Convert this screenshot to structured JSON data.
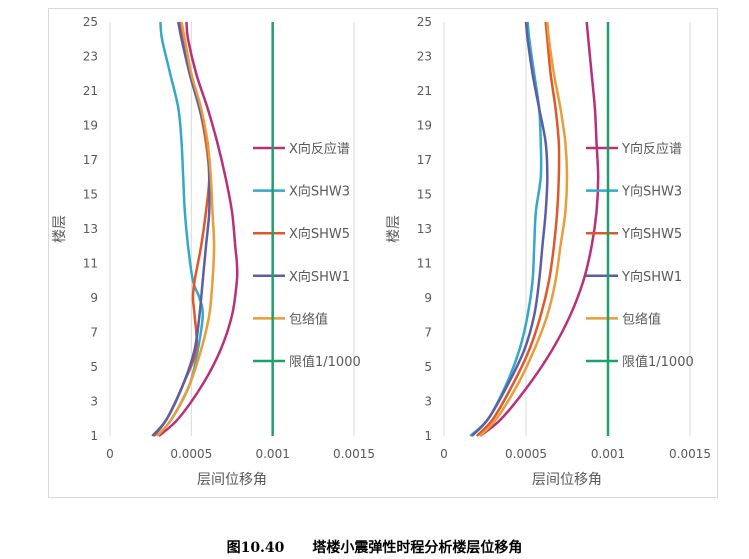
{
  "caption": {
    "number": "图10.40",
    "text": "塔楼小震弹性时程分析楼层位移角"
  },
  "colors": {
    "反应谱": "#b8307a",
    "SHW3": "#35a8c8",
    "SHW5": "#e0572a",
    "SHW1": "#5b5ea6",
    "包络值": "#eb9c3a",
    "限值": "#1fa06a"
  },
  "chart_data": [
    {
      "type": "line",
      "xlabel": "层间位移角",
      "ylabel": "楼层",
      "xlim": [
        0,
        0.0015
      ],
      "xticks": [
        "0",
        "0.0005",
        "0.001",
        "0.0015"
      ],
      "ylim": [
        1,
        25
      ],
      "yticks": [
        "1",
        "3",
        "5",
        "7",
        "9",
        "11",
        "13",
        "15",
        "17",
        "19",
        "21",
        "23",
        "25"
      ],
      "legend_position": "right",
      "series": [
        {
          "name": "X向反应谱",
          "color_key": "反应谱",
          "points": [
            [
              0.0003,
              1
            ],
            [
              0.00042,
              2
            ],
            [
              0.00057,
              4
            ],
            [
              0.00068,
              6
            ],
            [
              0.00075,
              8
            ],
            [
              0.00078,
              10
            ],
            [
              0.00078,
              11
            ],
            [
              0.00077,
              12
            ],
            [
              0.00075,
              14
            ],
            [
              0.00071,
              16
            ],
            [
              0.00066,
              18
            ],
            [
              0.0006,
              20
            ],
            [
              0.00053,
              22
            ],
            [
              0.00048,
              24
            ],
            [
              0.00047,
              25
            ]
          ]
        },
        {
          "name": "X向SHW3",
          "color_key": "SHW3",
          "points": [
            [
              0.00029,
              1
            ],
            [
              0.00038,
              2
            ],
            [
              0.00049,
              4
            ],
            [
              0.00054,
              6
            ],
            [
              0.00057,
              8
            ],
            [
              0.00055,
              9
            ],
            [
              0.00051,
              10
            ],
            [
              0.00048,
              12
            ],
            [
              0.00046,
              14
            ],
            [
              0.00045,
              16
            ],
            [
              0.00044,
              18
            ],
            [
              0.00042,
              20
            ],
            [
              0.00037,
              22
            ],
            [
              0.00032,
              24
            ],
            [
              0.00031,
              25
            ]
          ]
        },
        {
          "name": "X向SHW5",
          "color_key": "SHW5",
          "points": [
            [
              0.00027,
              1
            ],
            [
              0.00035,
              2
            ],
            [
              0.00045,
              4
            ],
            [
              0.00053,
              6
            ],
            [
              0.00052,
              8
            ],
            [
              0.00051,
              9
            ],
            [
              0.00052,
              10
            ],
            [
              0.00056,
              12
            ],
            [
              0.00059,
              14
            ],
            [
              0.00061,
              16
            ],
            [
              0.00059,
              18
            ],
            [
              0.00055,
              20
            ],
            [
              0.00049,
              22
            ],
            [
              0.00045,
              24
            ],
            [
              0.00043,
              25
            ]
          ]
        },
        {
          "name": "X向SHW1",
          "color_key": "SHW1",
          "points": [
            [
              0.00026,
              1
            ],
            [
              0.00035,
              2
            ],
            [
              0.00045,
              4
            ],
            [
              0.00052,
              6
            ],
            [
              0.00055,
              8
            ],
            [
              0.00057,
              10
            ],
            [
              0.00059,
              12
            ],
            [
              0.00061,
              14
            ],
            [
              0.00061,
              16
            ],
            [
              0.0006,
              18
            ],
            [
              0.00055,
              20
            ],
            [
              0.00049,
              22
            ],
            [
              0.00044,
              24
            ],
            [
              0.00042,
              25
            ]
          ]
        },
        {
          "name": "包络值",
          "color_key": "包络值",
          "points": [
            [
              0.00029,
              1
            ],
            [
              0.00038,
              2
            ],
            [
              0.00049,
              4
            ],
            [
              0.00056,
              6
            ],
            [
              0.00061,
              8
            ],
            [
              0.00063,
              10
            ],
            [
              0.00064,
              12
            ],
            [
              0.00063,
              14
            ],
            [
              0.00062,
              16
            ],
            [
              0.0006,
              18
            ],
            [
              0.00056,
              20
            ],
            [
              0.0005,
              22
            ],
            [
              0.00046,
              24
            ],
            [
              0.00044,
              25
            ]
          ]
        },
        {
          "name": "限值1/1000",
          "color_key": "限值",
          "points": [
            [
              0.001,
              1
            ],
            [
              0.001,
              25
            ]
          ]
        }
      ]
    },
    {
      "type": "line",
      "xlabel": "层间位移角",
      "ylabel": "楼层",
      "xlim": [
        0,
        0.0015
      ],
      "xticks": [
        "0",
        "0.0005",
        "0.001",
        "0.0015"
      ],
      "ylim": [
        1,
        25
      ],
      "yticks": [
        "1",
        "3",
        "5",
        "7",
        "9",
        "11",
        "13",
        "15",
        "17",
        "19",
        "21",
        "23",
        "25"
      ],
      "legend_position": "right",
      "series": [
        {
          "name": "Y向反应谱",
          "color_key": "反应谱",
          "points": [
            [
              0.00022,
              1
            ],
            [
              0.00035,
              2
            ],
            [
              0.00052,
              4
            ],
            [
              0.00066,
              6
            ],
            [
              0.00077,
              8
            ],
            [
              0.00085,
              10
            ],
            [
              0.0009,
              12
            ],
            [
              0.00093,
              14
            ],
            [
              0.00094,
              16
            ],
            [
              0.00093,
              18
            ],
            [
              0.00092,
              20
            ],
            [
              0.0009,
              22
            ],
            [
              0.00088,
              24
            ],
            [
              0.00087,
              25
            ]
          ]
        },
        {
          "name": "Y向SHW3",
          "color_key": "SHW3",
          "points": [
            [
              0.00016,
              1
            ],
            [
              0.00027,
              2
            ],
            [
              0.00038,
              4
            ],
            [
              0.00046,
              6
            ],
            [
              0.00051,
              8
            ],
            [
              0.00054,
              10
            ],
            [
              0.00055,
              12
            ],
            [
              0.00056,
              14
            ],
            [
              0.00059,
              16
            ],
            [
              0.00059,
              18
            ],
            [
              0.00058,
              20
            ],
            [
              0.00055,
              22
            ],
            [
              0.00052,
              24
            ],
            [
              0.00051,
              25
            ]
          ]
        },
        {
          "name": "Y向SHW5",
          "color_key": "SHW5",
          "points": [
            [
              0.0002,
              1
            ],
            [
              0.0003,
              2
            ],
            [
              0.00042,
              4
            ],
            [
              0.00052,
              6
            ],
            [
              0.00059,
              8
            ],
            [
              0.00064,
              10
            ],
            [
              0.00067,
              12
            ],
            [
              0.00069,
              14
            ],
            [
              0.0007,
              16
            ],
            [
              0.0007,
              18
            ],
            [
              0.00068,
              20
            ],
            [
              0.00065,
              22
            ],
            [
              0.00063,
              24
            ],
            [
              0.00062,
              25
            ]
          ]
        },
        {
          "name": "Y向SHW1",
          "color_key": "SHW1",
          "points": [
            [
              0.00017,
              1
            ],
            [
              0.00027,
              2
            ],
            [
              0.00039,
              4
            ],
            [
              0.00049,
              6
            ],
            [
              0.00055,
              8
            ],
            [
              0.00058,
              10
            ],
            [
              0.0006,
              12
            ],
            [
              0.00062,
              14
            ],
            [
              0.00063,
              16
            ],
            [
              0.00062,
              18
            ],
            [
              0.00058,
              20
            ],
            [
              0.00054,
              22
            ],
            [
              0.00051,
              24
            ],
            [
              0.0005,
              25
            ]
          ]
        },
        {
          "name": "包络值",
          "color_key": "包络值",
          "points": [
            [
              0.00022,
              1
            ],
            [
              0.00032,
              2
            ],
            [
              0.00045,
              4
            ],
            [
              0.00055,
              6
            ],
            [
              0.00063,
              8
            ],
            [
              0.00068,
              10
            ],
            [
              0.00071,
              12
            ],
            [
              0.00074,
              14
            ],
            [
              0.00075,
              16
            ],
            [
              0.00074,
              18
            ],
            [
              0.00071,
              20
            ],
            [
              0.00067,
              22
            ],
            [
              0.00064,
              24
            ],
            [
              0.00063,
              25
            ]
          ]
        },
        {
          "name": "限值1/1000",
          "color_key": "限值",
          "points": [
            [
              0.001,
              1
            ],
            [
              0.001,
              25
            ]
          ]
        }
      ]
    }
  ]
}
